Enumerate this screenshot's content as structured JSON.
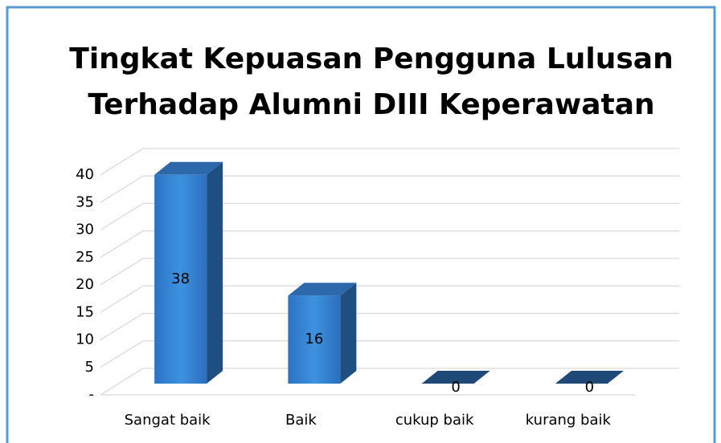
{
  "chart_data": {
    "type": "bar3d",
    "title": [
      "Tingkat Kepuasan Pengguna Lulusan",
      "Terhadap Alumni DIII Keperawatan"
    ],
    "categories": [
      "Sangat baik",
      "Baik",
      "cukup baik",
      "kurang baik"
    ],
    "values": [
      38,
      16,
      0,
      0
    ],
    "color": "#2f7ed0",
    "ylim": [
      0,
      40
    ],
    "yticks": [
      {
        "value": 0,
        "label": "-"
      },
      5,
      10,
      15,
      20,
      25,
      30,
      35,
      40
    ],
    "grid": true
  }
}
